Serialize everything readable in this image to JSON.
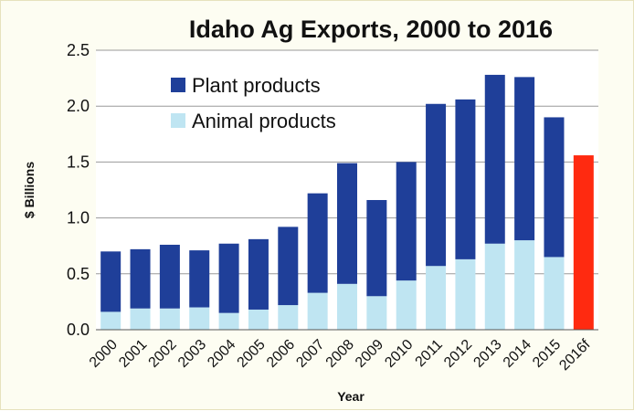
{
  "chart_data": {
    "type": "bar",
    "stacked": true,
    "title": "Idaho Ag Exports, 2000 to 2016",
    "xlabel": "Year",
    "ylabel": "$ Billions",
    "ylim": [
      0,
      2.5
    ],
    "yticks": [
      "0.0",
      "0.5",
      "1.0",
      "1.5",
      "2.0",
      "2.5"
    ],
    "grid": "horizontal",
    "legend_position": "top-left",
    "categories": [
      "2000",
      "2001",
      "2002",
      "2003",
      "2004",
      "2005",
      "2006",
      "2007",
      "2008",
      "2009",
      "2010",
      "2011",
      "2012",
      "2013",
      "2014",
      "2015",
      "2016f"
    ],
    "series": [
      {
        "name": "Animal products",
        "color": "#bfe5f2",
        "values": [
          0.16,
          0.19,
          0.19,
          0.2,
          0.15,
          0.18,
          0.22,
          0.33,
          0.41,
          0.3,
          0.44,
          0.57,
          0.63,
          0.77,
          0.8,
          0.65,
          null
        ]
      },
      {
        "name": "Plant products",
        "color": "#1f3f99",
        "values": [
          0.54,
          0.53,
          0.57,
          0.51,
          0.62,
          0.63,
          0.7,
          0.89,
          1.08,
          0.86,
          1.06,
          1.45,
          1.43,
          1.51,
          1.46,
          1.25,
          null
        ]
      }
    ],
    "forecast": {
      "category": "2016f",
      "value": 1.56,
      "color": "#ff2a10"
    }
  }
}
